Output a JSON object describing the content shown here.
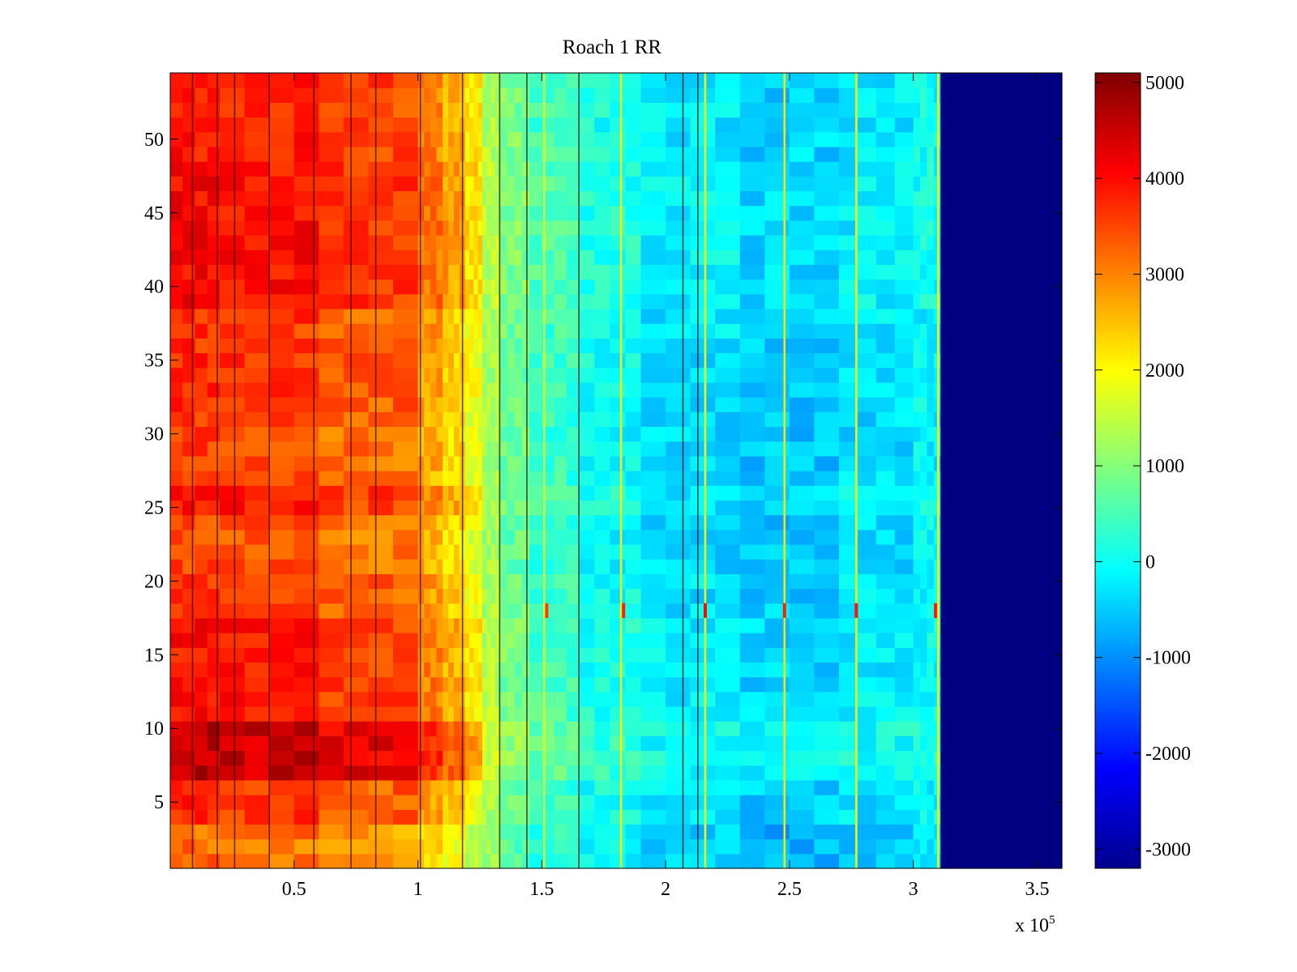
{
  "chart_data": {
    "type": "heatmap",
    "title": "Roach 1 RR",
    "xlabel": "",
    "ylabel": "",
    "x_exponent_label": {
      "base": "x 10",
      "exponent": "5"
    },
    "xlim": [
      0,
      360000
    ],
    "ylim": [
      0.5,
      54.5
    ],
    "x_ticks": [
      50000,
      100000,
      150000,
      200000,
      250000,
      300000,
      350000
    ],
    "x_tick_labels": [
      "0.5",
      "1",
      "1.5",
      "2",
      "2.5",
      "3",
      "3.5"
    ],
    "y_ticks": [
      5,
      10,
      15,
      20,
      25,
      30,
      35,
      40,
      45,
      50
    ],
    "y_tick_labels": [
      "5",
      "10",
      "15",
      "20",
      "25",
      "30",
      "35",
      "40",
      "45",
      "50"
    ],
    "rows": 54,
    "colormap": "jet",
    "clim": [
      -3200,
      5100
    ],
    "colorbar_ticks": [
      5000,
      4000,
      3000,
      2000,
      1000,
      0,
      -1000,
      -2000,
      -3000
    ],
    "colorbar_tick_labels": [
      "5000",
      "4000",
      "3000",
      "2000",
      "1000",
      "0",
      "-1000",
      "-2000",
      "-3000"
    ],
    "column_bands": [
      {
        "x_start": 0,
        "x_end": 20000,
        "value": 3700
      },
      {
        "x_start": 20000,
        "x_end": 60000,
        "value": 3600
      },
      {
        "x_start": 60000,
        "x_end": 100000,
        "value": 3300
      },
      {
        "x_start": 100000,
        "x_end": 110000,
        "value": 2800
      },
      {
        "x_start": 110000,
        "x_end": 119000,
        "value": 2400
      },
      {
        "x_start": 119000,
        "x_end": 126000,
        "value": 1900
      },
      {
        "x_start": 126000,
        "x_end": 133000,
        "value": 1300
      },
      {
        "x_start": 133000,
        "x_end": 145000,
        "value": 800
      },
      {
        "x_start": 145000,
        "x_end": 165000,
        "value": 400
      },
      {
        "x_start": 165000,
        "x_end": 190000,
        "value": 0
      },
      {
        "x_start": 190000,
        "x_end": 230000,
        "value": -300
      },
      {
        "x_start": 230000,
        "x_end": 270000,
        "value": -500
      },
      {
        "x_start": 270000,
        "x_end": 300000,
        "value": -300
      },
      {
        "x_start": 300000,
        "x_end": 311000,
        "value": -100
      },
      {
        "x_start": 311000,
        "x_end": 360000,
        "value": -3200
      }
    ],
    "row_offsets": [
      {
        "rows": [
          1,
          3
        ],
        "offset": -500
      },
      {
        "rows": [
          7,
          10
        ],
        "offset": 900
      },
      {
        "rows": [
          11,
          17
        ],
        "offset": 250
      },
      {
        "rows": [
          18,
          20
        ],
        "offset": 0
      },
      {
        "rows": [
          21,
          24
        ],
        "offset": -200
      },
      {
        "rows": [
          25,
          26
        ],
        "offset": 250
      },
      {
        "rows": [
          27,
          31
        ],
        "offset": -150
      },
      {
        "rows": [
          39,
          48
        ],
        "offset": 350
      },
      {
        "rows": [
          49,
          54
        ],
        "offset": 200
      }
    ],
    "dark_lines_x": [
      9000,
      19000,
      26000,
      40000,
      58000,
      73000,
      83000,
      101000,
      118000,
      133000,
      144000,
      165000,
      207000,
      213000
    ],
    "bright_lines": [
      {
        "x": 151000,
        "value": 1600
      },
      {
        "x": 182000,
        "value": 2100
      },
      {
        "x": 216000,
        "value": 2000
      },
      {
        "x": 248000,
        "value": 2200
      },
      {
        "x": 277000,
        "value": 2000
      },
      {
        "x": 310000,
        "value": 2000
      }
    ],
    "hot_spots": [
      {
        "x": 152000,
        "row": 18,
        "value": 3600
      },
      {
        "x": 183000,
        "row": 18,
        "value": 3800
      },
      {
        "x": 216000,
        "row": 18,
        "value": 4000
      },
      {
        "x": 248000,
        "row": 18,
        "value": 3800
      },
      {
        "x": 277000,
        "row": 18,
        "value": 3900
      },
      {
        "x": 309000,
        "row": 18,
        "value": 3900
      }
    ]
  }
}
